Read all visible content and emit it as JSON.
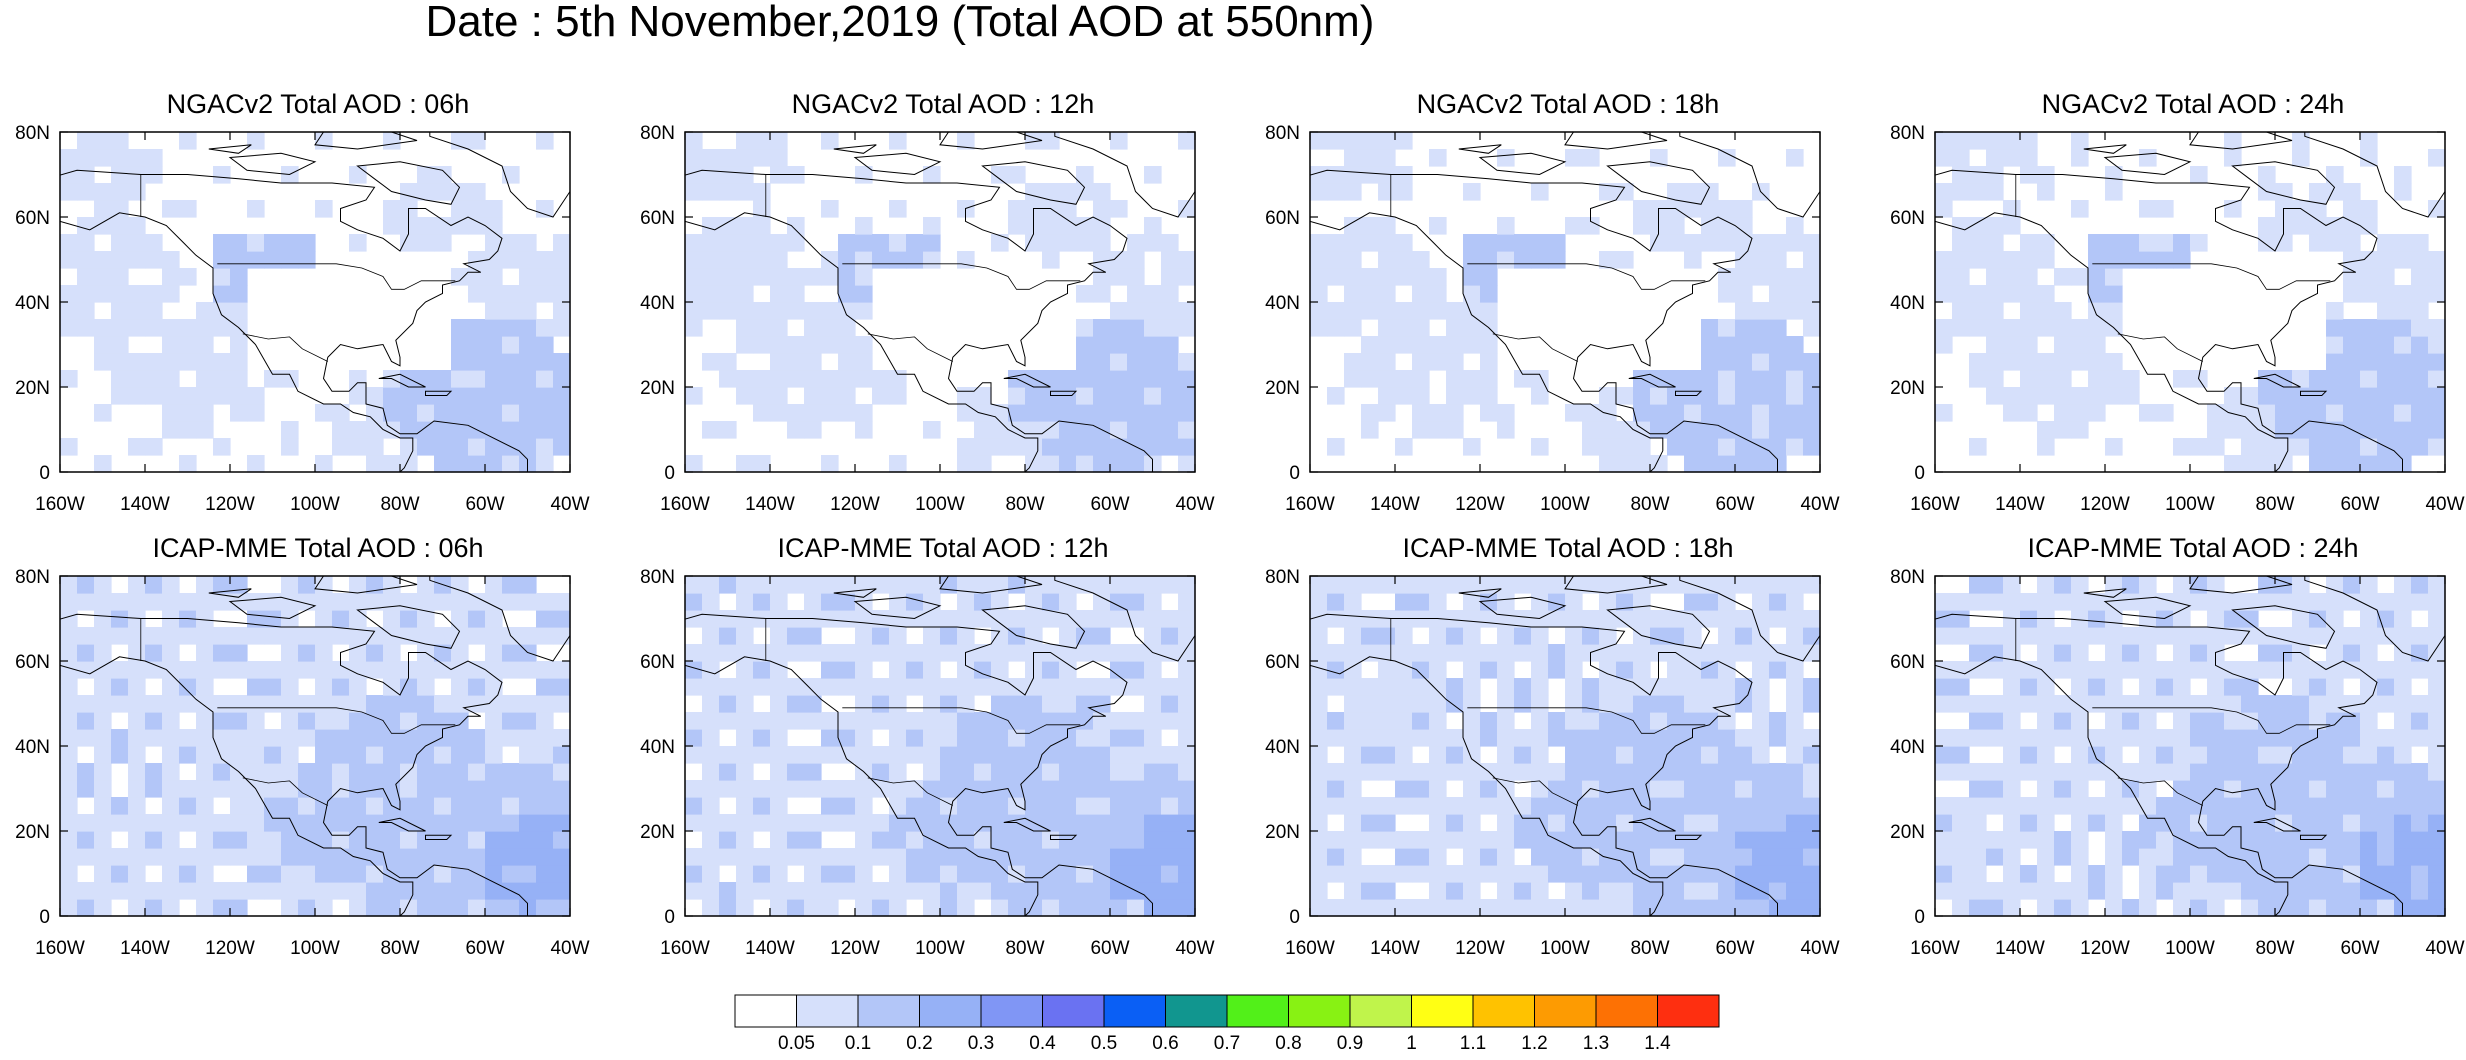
{
  "title": "Date : 5th November,2019 (Total AOD at 550nm)",
  "axes": {
    "lat_ticks": [
      "80N",
      "60N",
      "40N",
      "20N",
      "0"
    ],
    "lon_ticks": [
      "160W",
      "140W",
      "120W",
      "100W",
      "80W",
      "60W",
      "40W"
    ],
    "lat_range": [
      0,
      80
    ],
    "lon_range": [
      -160,
      -40
    ]
  },
  "panels": [
    {
      "title": "NGACv2 Total AOD : 06h",
      "model": "NGACv2",
      "hour": "06h"
    },
    {
      "title": "NGACv2 Total AOD : 12h",
      "model": "NGACv2",
      "hour": "12h"
    },
    {
      "title": "NGACv2 Total AOD : 18h",
      "model": "NGACv2",
      "hour": "18h"
    },
    {
      "title": "NGACv2 Total AOD : 24h",
      "model": "NGACv2",
      "hour": "24h"
    },
    {
      "title": "ICAP-MME Total AOD : 06h",
      "model": "ICAP-MME",
      "hour": "06h"
    },
    {
      "title": "ICAP-MME Total AOD : 12h",
      "model": "ICAP-MME",
      "hour": "12h"
    },
    {
      "title": "ICAP-MME Total AOD : 18h",
      "model": "ICAP-MME",
      "hour": "18h"
    },
    {
      "title": "ICAP-MME Total AOD : 24h",
      "model": "ICAP-MME",
      "hour": "24h"
    }
  ],
  "colorbar": {
    "labels": [
      "0.05",
      "0.1",
      "0.2",
      "0.3",
      "0.4",
      "0.5",
      "0.6",
      "0.7",
      "0.8",
      "0.9",
      "1",
      "1.1",
      "1.2",
      "1.3",
      "1.4"
    ],
    "colors": [
      "#ffffff",
      "#d6e0fb",
      "#b3c6f8",
      "#96b1f6",
      "#8096f5",
      "#6a72f2",
      "#0a5ff5",
      "#11968f",
      "#52f019",
      "#88f213",
      "#c0f44b",
      "#ffff14",
      "#ffc200",
      "#fd9b02",
      "#fd7104",
      "#fe2f10"
    ]
  },
  "map_colors": {
    "aod_low": "#ffffff",
    "aod_01": "#d6e0fb",
    "aod_02": "#b3c6f8",
    "aod_03": "#96b1f6",
    "aod_04": "#8096f5",
    "coastline": "#000000"
  }
}
